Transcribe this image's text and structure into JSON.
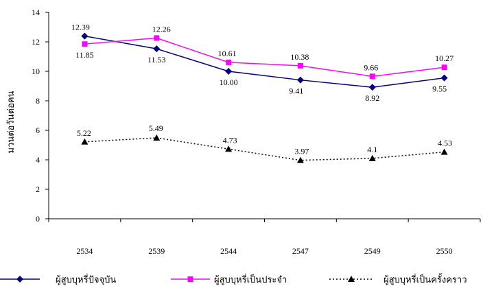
{
  "chart_data": {
    "type": "line",
    "title": "",
    "xlabel": "",
    "ylabel": "มวนต่อวันต่อคน",
    "categories": [
      "2534",
      "2539",
      "2544",
      "2547",
      "2549",
      "2550"
    ],
    "ylim": [
      0,
      14
    ],
    "yticks": [
      "0",
      "2",
      "4",
      "6",
      "8",
      "10",
      "12",
      "14"
    ],
    "grid": false,
    "legend_position": "bottom",
    "series": [
      {
        "name": "ผู้สูบบุหรี่ปัจจุบัน",
        "values": [
          12.39,
          11.53,
          10.0,
          9.41,
          8.92,
          9.55
        ],
        "labels": [
          "12.39",
          "11.53",
          "10.00",
          "9.41",
          "8.92",
          "9.55"
        ],
        "color": "#000080",
        "marker": "diamond",
        "line_style": "solid"
      },
      {
        "name": "ผู้สูบบุหรี่เป็นประจำ",
        "values": [
          11.85,
          12.26,
          10.61,
          10.38,
          9.66,
          10.27
        ],
        "labels": [
          "11.85",
          "12.26",
          "10.61",
          "10.38",
          "9.66",
          "10.27"
        ],
        "color": "#ff00ff",
        "marker": "square",
        "line_style": "solid"
      },
      {
        "name": "ผู้สูบบุหรี่เป็นครั้งคราว",
        "values": [
          5.22,
          5.49,
          4.73,
          3.97,
          4.1,
          4.53
        ],
        "labels": [
          "5.22",
          "5.49",
          "4.73",
          "3.97",
          "4.1",
          "4.53"
        ],
        "color": "#000000",
        "marker": "triangle",
        "line_style": "dotted"
      }
    ]
  }
}
